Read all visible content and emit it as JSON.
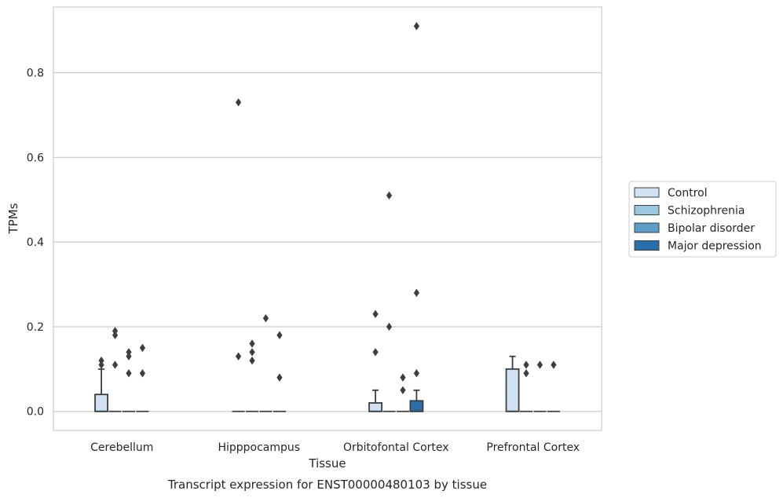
{
  "caption": "Transcript expression for ENST00000480103 by tissue",
  "chart_data": {
    "type": "box",
    "xlabel": "Tissue",
    "ylabel": "TPMs",
    "ylim": [
      -0.045,
      0.955
    ],
    "yticks": [
      0.0,
      0.2,
      0.4,
      0.6,
      0.8
    ],
    "ytick_labels": [
      "0.0",
      "0.2",
      "0.4",
      "0.6",
      "0.8"
    ],
    "grid": "horizontal",
    "legend_placement": "right",
    "categories": [
      "Cerebellum",
      "Hipppocampus",
      "Orbitofontal Cortex",
      "Prefrontal Cortex"
    ],
    "series": [
      {
        "name": "Control",
        "color": "#d0e1f2",
        "boxes": [
          {
            "q1": 0.0,
            "median": 0.0,
            "q3": 0.04,
            "whisker_low": 0.0,
            "whisker_high": 0.1,
            "outliers": [
              0.11,
              0.12
            ]
          },
          {
            "q1": 0.0,
            "median": 0.0,
            "q3": 0.0,
            "whisker_low": 0.0,
            "whisker_high": 0.0,
            "outliers": [
              0.13,
              0.73
            ]
          },
          {
            "q1": 0.0,
            "median": 0.0,
            "q3": 0.02,
            "whisker_low": 0.0,
            "whisker_high": 0.05,
            "outliers": [
              0.14,
              0.23
            ]
          },
          {
            "q1": 0.0,
            "median": 0.0,
            "q3": 0.1,
            "whisker_low": 0.0,
            "whisker_high": 0.13,
            "outliers": []
          }
        ]
      },
      {
        "name": "Schizophrenia",
        "color": "#9ac8e0",
        "boxes": [
          {
            "q1": 0.0,
            "median": 0.0,
            "q3": 0.0,
            "whisker_low": 0.0,
            "whisker_high": 0.0,
            "outliers": [
              0.11,
              0.18,
              0.19
            ]
          },
          {
            "q1": 0.0,
            "median": 0.0,
            "q3": 0.0,
            "whisker_low": 0.0,
            "whisker_high": 0.0,
            "outliers": [
              0.12,
              0.14,
              0.16
            ]
          },
          {
            "q1": 0.0,
            "median": 0.0,
            "q3": 0.0,
            "whisker_low": 0.0,
            "whisker_high": 0.0,
            "outliers": [
              0.2,
              0.51
            ]
          },
          {
            "q1": 0.0,
            "median": 0.0,
            "q3": 0.0,
            "whisker_low": 0.0,
            "whisker_high": 0.0,
            "outliers": [
              0.09,
              0.11
            ]
          }
        ]
      },
      {
        "name": "Bipolar disorder",
        "color": "#5a9ec9",
        "boxes": [
          {
            "q1": 0.0,
            "median": 0.0,
            "q3": 0.0,
            "whisker_low": 0.0,
            "whisker_high": 0.0,
            "outliers": [
              0.09,
              0.13,
              0.14
            ]
          },
          {
            "q1": 0.0,
            "median": 0.0,
            "q3": 0.0,
            "whisker_low": 0.0,
            "whisker_high": 0.0,
            "outliers": [
              0.22
            ]
          },
          {
            "q1": 0.0,
            "median": 0.0,
            "q3": 0.0,
            "whisker_low": 0.0,
            "whisker_high": 0.0,
            "outliers": [
              0.05,
              0.08
            ]
          },
          {
            "q1": 0.0,
            "median": 0.0,
            "q3": 0.0,
            "whisker_low": 0.0,
            "whisker_high": 0.0,
            "outliers": [
              0.11
            ]
          }
        ]
      },
      {
        "name": "Major depression",
        "color": "#2a6fad",
        "boxes": [
          {
            "q1": 0.0,
            "median": 0.0,
            "q3": 0.0,
            "whisker_low": 0.0,
            "whisker_high": 0.0,
            "outliers": [
              0.09,
              0.15
            ]
          },
          {
            "q1": 0.0,
            "median": 0.0,
            "q3": 0.0,
            "whisker_low": 0.0,
            "whisker_high": 0.0,
            "outliers": [
              0.08,
              0.18
            ]
          },
          {
            "q1": 0.0,
            "median": 0.0,
            "q3": 0.025,
            "whisker_low": 0.0,
            "whisker_high": 0.05,
            "outliers": [
              0.09,
              0.28,
              0.91
            ]
          },
          {
            "q1": 0.0,
            "median": 0.0,
            "q3": 0.0,
            "whisker_low": 0.0,
            "whisker_high": 0.0,
            "outliers": [
              0.11
            ]
          }
        ]
      }
    ]
  }
}
